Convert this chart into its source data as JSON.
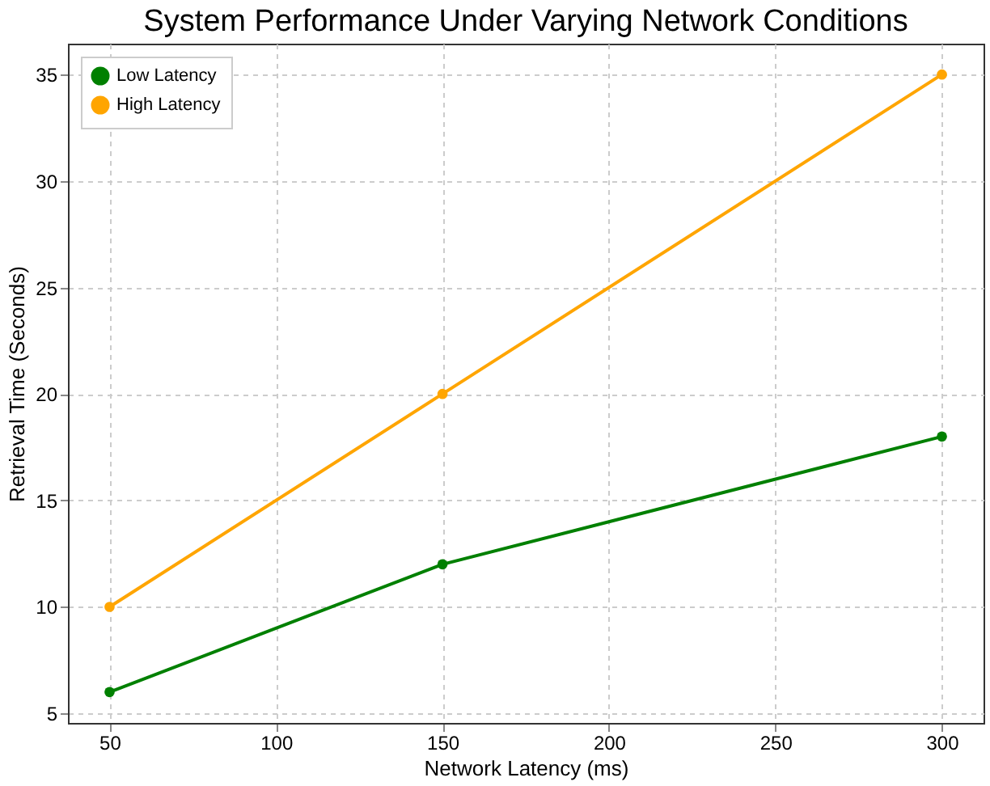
{
  "chart_data": {
    "type": "line",
    "title": "System Performance Under Varying Network Conditions",
    "xlabel": "Network Latency (ms)",
    "ylabel": "Retrieval Time (Seconds)",
    "x": [
      50,
      150,
      300
    ],
    "series": [
      {
        "name": "Low Latency",
        "color": "#008000",
        "values": [
          6,
          12,
          18
        ]
      },
      {
        "name": "High Latency",
        "color": "#ffa500",
        "values": [
          10,
          20,
          35
        ]
      }
    ],
    "xlim": [
      37.5,
      312.5
    ],
    "xticks": [
      50,
      100,
      150,
      200,
      250,
      300
    ],
    "ylim": [
      4.55,
      36.45
    ],
    "yticks": [
      5,
      10,
      15,
      20,
      25,
      30,
      35
    ],
    "grid": true,
    "legend": "top left",
    "marker": "circle",
    "line_style": "solid"
  }
}
